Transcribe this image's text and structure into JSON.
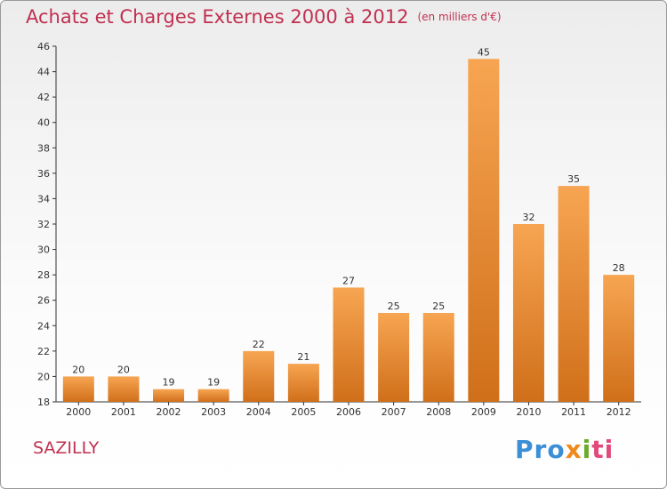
{
  "header": {
    "title": "Achats et Charges Externes 2000 à 2012",
    "subtitle": "(en milliers d'€)"
  },
  "footer": {
    "commune": "SAZILLY",
    "logo_parts": [
      "Pro",
      "x",
      "i",
      "ti"
    ]
  },
  "colors": {
    "bar_top": "#f7a552",
    "bar_bottom": "#d06f1a",
    "title": "#c03050",
    "axis": "#333333"
  },
  "chart_data": {
    "type": "bar",
    "title": "Achats et Charges Externes 2000 à 2012",
    "subtitle": "(en milliers d'€)",
    "categories": [
      "2000",
      "2001",
      "2002",
      "2003",
      "2004",
      "2005",
      "2006",
      "2007",
      "2008",
      "2009",
      "2010",
      "2011",
      "2012"
    ],
    "values": [
      20,
      20,
      19,
      19,
      22,
      21,
      27,
      25,
      25,
      45,
      32,
      35,
      28
    ],
    "ylim": [
      18,
      46
    ],
    "yticks": [
      18,
      20,
      22,
      24,
      26,
      28,
      30,
      32,
      34,
      36,
      38,
      40,
      42,
      44,
      46
    ],
    "grid": false,
    "data_labels": true
  }
}
